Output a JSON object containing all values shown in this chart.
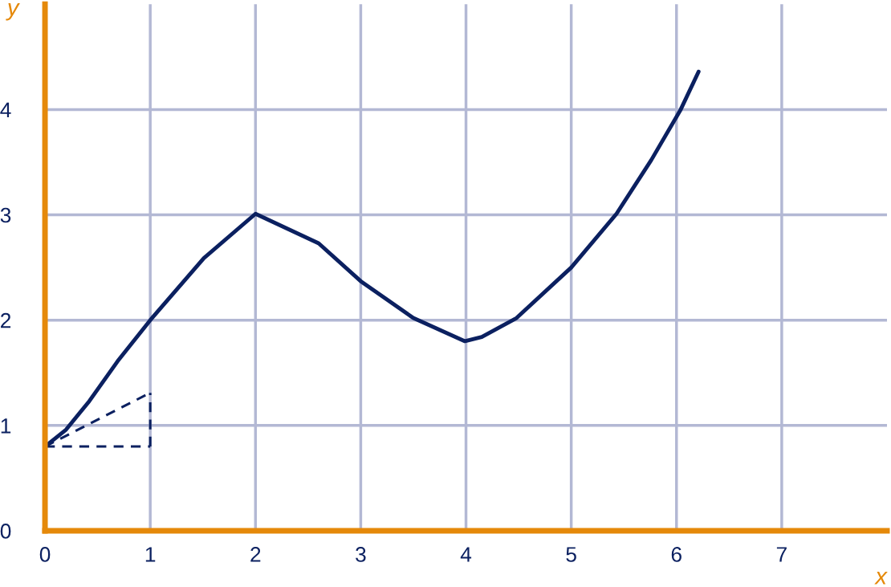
{
  "chart_data": {
    "type": "line",
    "xlabel": "x",
    "ylabel": "y",
    "xlim": [
      0,
      8
    ],
    "ylim": [
      0,
      5
    ],
    "xticks": [
      0,
      1,
      2,
      3,
      4,
      5,
      6,
      7
    ],
    "yticks": [
      0,
      1,
      2,
      3,
      4
    ],
    "grid": true,
    "legend": false,
    "marker": "none",
    "series": [
      {
        "color": "#0b2060",
        "line_style": "solid",
        "x": [
          0,
          0.2,
          0.42,
          0.69,
          1.0,
          1.51,
          2.0,
          2.6,
          3.0,
          3.5,
          3.99,
          4.15,
          4.48,
          5.0,
          5.43,
          5.76,
          6.04,
          6.21
        ],
        "values": [
          0.8,
          0.96,
          1.23,
          1.61,
          2.0,
          2.59,
          3.01,
          2.73,
          2.37,
          2.02,
          1.8,
          1.84,
          2.02,
          2.5,
          3.01,
          3.52,
          4.0,
          4.36
        ]
      },
      {
        "color": "#0b2060",
        "line_style": "dashed",
        "x": [
          0,
          1
        ],
        "values": [
          0.8,
          1.31
        ]
      },
      {
        "color": "#0b2060",
        "line_style": "dashed",
        "x": [
          0,
          1
        ],
        "values": [
          0.8,
          0.8
        ]
      },
      {
        "color": "#0b2060",
        "line_style": "dashed",
        "x": [
          1,
          1
        ],
        "values": [
          0.8,
          1.31
        ]
      }
    ]
  }
}
